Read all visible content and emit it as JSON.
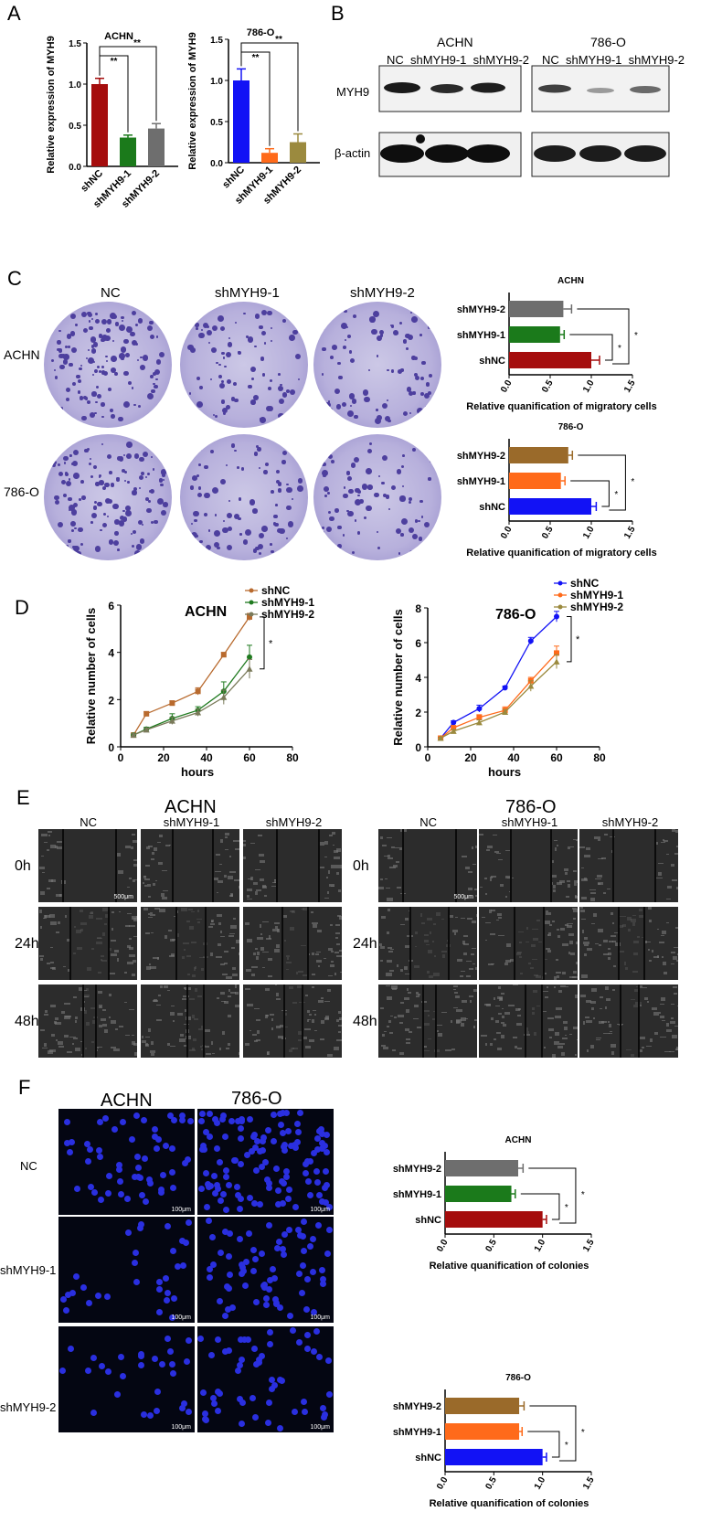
{
  "panels": {
    "A": {
      "letter": "A",
      "charts": [
        {
          "title": "ACHN",
          "ylabel": "Relative expression of MYH9",
          "sig": [
            "**",
            "**"
          ]
        },
        {
          "title": "786-O",
          "ylabel": "Relative expression of MYH9",
          "sig": [
            "**",
            "**"
          ]
        }
      ]
    },
    "B": {
      "letter": "B",
      "groups": [
        {
          "cell": "ACHN",
          "lanes": "NC  shMYH9-1  shMYH9-2"
        },
        {
          "cell": "786-O",
          "lanes": "NC  shMYH9-1  shMYH9-2"
        }
      ],
      "rows": [
        "MYH9",
        "β-actin"
      ]
    },
    "C": {
      "letter": "C",
      "columns": [
        "NC",
        "shMYH9-1",
        "shMYH9-2"
      ],
      "rows": [
        "ACHN",
        "786-O"
      ],
      "charts": [
        {
          "title": "ACHN",
          "xlabel": "Relative quanification of migratory cells",
          "sig": [
            "*",
            "*"
          ]
        },
        {
          "title": "786-O",
          "xlabel": "Relative quanification of migratory cells",
          "sig": [
            "*",
            "*"
          ]
        }
      ]
    },
    "D": {
      "letter": "D",
      "charts": [
        {
          "title": "ACHN",
          "xlabel": "hours",
          "ylabel": "Relative number of cells",
          "sig": "*"
        },
        {
          "title": "786-O",
          "xlabel": "hours",
          "ylabel": "Relative number of cells",
          "sig": "*"
        }
      ]
    },
    "E": {
      "letter": "E",
      "groups": [
        {
          "cell": "ACHN",
          "columns": [
            "NC",
            "shMYH9-1",
            "shMYH9-2"
          ]
        },
        {
          "cell": "786-O",
          "columns": [
            "NC",
            "shMYH9-1",
            "shMYH9-2"
          ]
        }
      ],
      "rows": [
        "0h",
        "24h",
        "48h"
      ],
      "scale": "500μm"
    },
    "F": {
      "letter": "F",
      "columns": [
        "ACHN",
        "786-O"
      ],
      "rows": [
        "NC",
        "shMYH9-1",
        "shMYH9-2"
      ],
      "scale": "100μm",
      "charts": [
        {
          "title": "ACHN",
          "xlabel": "Relative quanification of colonies",
          "sig": [
            "*",
            "*"
          ]
        },
        {
          "title": "786-O",
          "xlabel": "Relative quanification of colonies",
          "sig": [
            "*",
            "*"
          ]
        }
      ]
    }
  },
  "colors": {
    "shNC_dark": "#a50d0d",
    "shMYH9_1_green": "#1b7a1b",
    "shMYH9_2_gray": "#6e6e6e",
    "shNC_blue": "#1212f5",
    "shMYH9_1_orange": "#ff6a1a",
    "shMYH9_2_olive": "#9b8a3e",
    "shMYH9_2_brown": "#9a6a2a",
    "achn_line_nc": "#b86a2e",
    "achn_line_1": "#1f7a1f",
    "achn_line_2": "#7a7a5a"
  },
  "chart_data": [
    {
      "type": "bar",
      "panel": "A",
      "title": "ACHN",
      "ylabel": "Relative expression of MYH9",
      "categories": [
        "shNC",
        "shMYH9-1",
        "shMYH9-2"
      ],
      "values": [
        1.0,
        0.35,
        0.46
      ],
      "errors": [
        0.07,
        0.03,
        0.06
      ],
      "ylim": [
        0,
        1.5
      ],
      "yticks": [
        "0.0",
        "0.5",
        "1.0",
        "1.5"
      ]
    },
    {
      "type": "bar",
      "panel": "A",
      "title": "786-O",
      "ylabel": "Relative expression of MYH9",
      "categories": [
        "shNC",
        "shMYH9-1",
        "shMYH9-2"
      ],
      "values": [
        1.0,
        0.12,
        0.25
      ],
      "errors": [
        0.14,
        0.05,
        0.1
      ],
      "ylim": [
        0,
        1.5
      ],
      "yticks": [
        "0.0",
        "0.5",
        "1.0",
        "1.5"
      ]
    },
    {
      "type": "bar",
      "panel": "C",
      "title": "ACHN",
      "orientation": "horizontal",
      "xlabel": "Relative quanification of migratory cells",
      "categories": [
        "shMYH9-2",
        "shMYH9-1",
        "shNC"
      ],
      "values": [
        0.66,
        0.62,
        1.0
      ],
      "errors": [
        0.1,
        0.05,
        0.1
      ],
      "xlim": [
        0,
        1.5
      ],
      "xticks": [
        "0.0",
        "0.5",
        "1.0",
        "1.5"
      ]
    },
    {
      "type": "bar",
      "panel": "C",
      "title": "786-O",
      "orientation": "horizontal",
      "xlabel": "Relative quanification of migratory cells",
      "categories": [
        "shMYH9-2",
        "shMYH9-1",
        "shNC"
      ],
      "values": [
        0.72,
        0.63,
        1.0
      ],
      "errors": [
        0.05,
        0.05,
        0.06
      ],
      "xlim": [
        0,
        1.5
      ],
      "xticks": [
        "0.0",
        "0.5",
        "1.0",
        "1.5"
      ]
    },
    {
      "type": "line",
      "panel": "D",
      "title": "ACHN",
      "xlabel": "hours",
      "ylabel": "Relative number of cells",
      "x": [
        6,
        12,
        24,
        36,
        48,
        60
      ],
      "xlim": [
        0,
        80
      ],
      "ylim": [
        0,
        6
      ],
      "xticks": [
        "0",
        "20",
        "40",
        "60",
        "80"
      ],
      "yticks": [
        "0",
        "2",
        "4",
        "6"
      ],
      "series": [
        {
          "name": "shNC",
          "values": [
            0.5,
            1.4,
            1.85,
            2.35,
            3.9,
            5.5
          ],
          "errors": [
            0.05,
            0.08,
            0.1,
            0.15,
            0.1,
            0.15
          ]
        },
        {
          "name": "shMYH9-1",
          "values": [
            0.5,
            0.75,
            1.2,
            1.55,
            2.35,
            3.8
          ],
          "errors": [
            0.05,
            0.08,
            0.2,
            0.15,
            0.4,
            0.5
          ]
        },
        {
          "name": "shMYH9-2",
          "values": [
            0.5,
            0.72,
            1.1,
            1.45,
            2.1,
            3.3
          ],
          "errors": [
            0.05,
            0.08,
            0.15,
            0.15,
            0.3,
            0.4
          ]
        }
      ]
    },
    {
      "type": "line",
      "panel": "D",
      "title": "786-O",
      "xlabel": "hours",
      "ylabel": "Relative number of cells",
      "x": [
        6,
        12,
        24,
        36,
        48,
        60
      ],
      "xlim": [
        0,
        80
      ],
      "ylim": [
        0,
        8
      ],
      "xticks": [
        "0",
        "20",
        "40",
        "60",
        "80"
      ],
      "yticks": [
        "0",
        "2",
        "4",
        "6",
        "8"
      ],
      "series": [
        {
          "name": "shNC",
          "values": [
            0.5,
            1.4,
            2.2,
            3.4,
            6.1,
            7.5
          ],
          "errors": [
            0.05,
            0.1,
            0.2,
            0.1,
            0.2,
            0.3
          ]
        },
        {
          "name": "shMYH9-1",
          "values": [
            0.5,
            1.1,
            1.7,
            2.1,
            3.8,
            5.4
          ],
          "errors": [
            0.05,
            0.1,
            0.15,
            0.2,
            0.2,
            0.4
          ]
        },
        {
          "name": "shMYH9-2",
          "values": [
            0.5,
            0.9,
            1.4,
            2.0,
            3.5,
            4.9
          ],
          "errors": [
            0.05,
            0.1,
            0.15,
            0.15,
            0.3,
            0.4
          ]
        }
      ]
    },
    {
      "type": "bar",
      "panel": "F",
      "title": "ACHN",
      "orientation": "horizontal",
      "xlabel": "Relative quanification of colonies",
      "categories": [
        "shMYH9-2",
        "shMYH9-1",
        "shNC"
      ],
      "values": [
        0.75,
        0.68,
        1.0
      ],
      "errors": [
        0.05,
        0.04,
        0.04
      ],
      "xlim": [
        0,
        1.5
      ],
      "xticks": [
        "0.0",
        "0.5",
        "1.0",
        "1.5"
      ]
    },
    {
      "type": "bar",
      "panel": "F",
      "title": "786-O",
      "orientation": "horizontal",
      "xlabel": "Relative quanification of colonies",
      "categories": [
        "shMYH9-2",
        "shMYH9-1",
        "shNC"
      ],
      "values": [
        0.76,
        0.76,
        1.0
      ],
      "errors": [
        0.05,
        0.03,
        0.04
      ],
      "xlim": [
        0,
        1.5
      ],
      "xticks": [
        "0.0",
        "0.5",
        "1.0",
        "1.5"
      ]
    }
  ]
}
